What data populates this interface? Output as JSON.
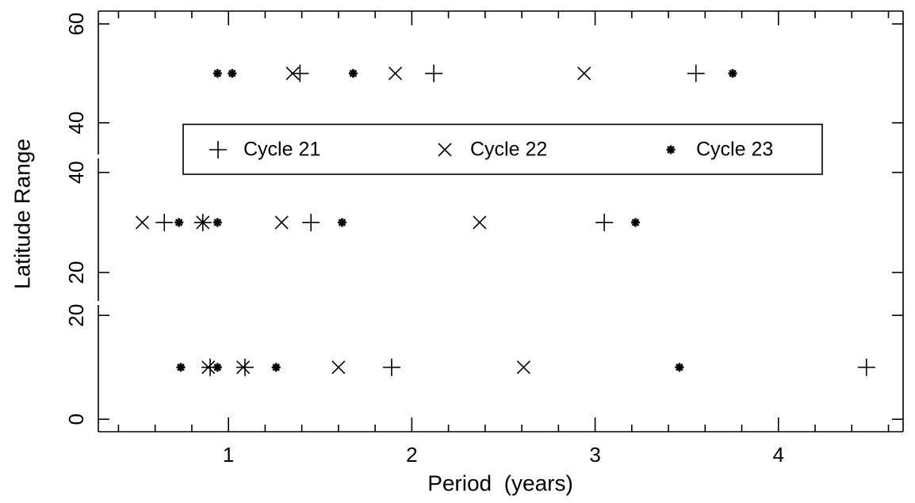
{
  "chart_data": [
    {
      "type": "scatter",
      "ylim": [
        33.6,
        62.6
      ],
      "yticks": [
        40,
        60
      ],
      "series": [
        {
          "name": "Cycle 21",
          "marker": "plus",
          "color": "#000000",
          "x": [
            1.39,
            2.12,
            3.55
          ],
          "y": [
            50,
            50,
            50
          ]
        },
        {
          "name": "Cycle 22",
          "marker": "cross",
          "color": "#000000",
          "x": [
            1.35,
            1.91,
            2.94
          ],
          "y": [
            50,
            50,
            50
          ]
        },
        {
          "name": "Cycle 23",
          "marker": "asterisk",
          "color": "#000000",
          "x": [
            0.94,
            1.02,
            1.68,
            3.75
          ],
          "y": [
            50,
            50,
            50,
            50
          ]
        }
      ]
    },
    {
      "type": "scatter",
      "ylim": [
        14.3,
        42.8
      ],
      "yticks": [
        20,
        40
      ],
      "ylabel": "Latitude Range",
      "series": [
        {
          "marker": "plus",
          "color": "#000000",
          "x": [
            0.65,
            0.86,
            1.45,
            3.05
          ],
          "y": [
            30,
            30,
            30,
            30
          ]
        },
        {
          "marker": "cross",
          "color": "#000000",
          "x": [
            0.53,
            0.86,
            1.29,
            2.37
          ],
          "y": [
            30,
            30,
            30,
            30
          ]
        },
        {
          "marker": "asterisk",
          "color": "#000000",
          "x": [
            0.73,
            0.94,
            1.62,
            3.22
          ],
          "y": [
            30,
            30,
            30,
            30
          ]
        }
      ]
    },
    {
      "type": "scatter",
      "ylim": [
        -2.4,
        22
      ],
      "yticks": [
        0,
        20
      ],
      "xlim": [
        0.29,
        4.68
      ],
      "xticks": [
        1,
        2,
        3,
        4
      ],
      "xminorticks": [
        0.4,
        0.6,
        0.8,
        1.2,
        1.4,
        1.6,
        1.8,
        2.2,
        2.4,
        2.6,
        2.8,
        3.2,
        3.4,
        3.6,
        3.8,
        4.2,
        4.4,
        4.6
      ],
      "xlabel": "Period  (years)",
      "series": [
        {
          "marker": "plus",
          "color": "#000000",
          "x": [
            0.9,
            1.09,
            1.89,
            4.48
          ],
          "y": [
            10,
            10,
            10,
            10
          ]
        },
        {
          "marker": "cross",
          "color": "#000000",
          "x": [
            0.89,
            1.08,
            1.6,
            2.61
          ],
          "y": [
            10,
            10,
            10,
            10
          ]
        },
        {
          "marker": "asterisk",
          "color": "#000000",
          "x": [
            0.74,
            0.94,
            1.26,
            3.46
          ],
          "y": [
            10,
            10,
            10,
            10
          ]
        }
      ]
    }
  ]
}
